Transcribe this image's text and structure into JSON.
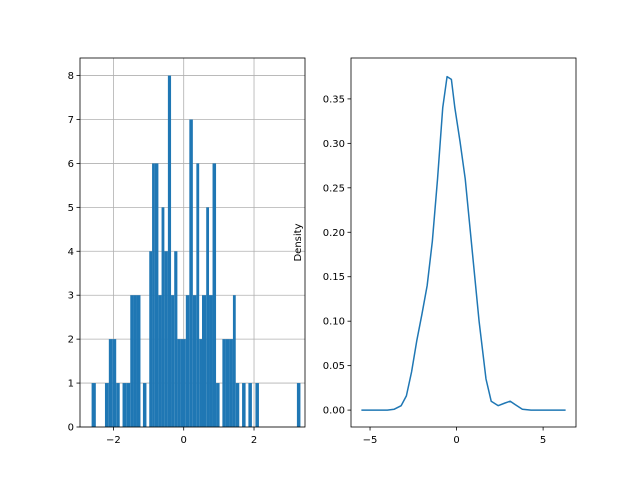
{
  "chart_data": [
    {
      "type": "histogram",
      "grid": true,
      "xlim": [
        -2.95,
        3.45
      ],
      "ylim": [
        0,
        8.4
      ],
      "xticks": [
        -2,
        0,
        2
      ],
      "xtick_labels": [
        "−2",
        "0",
        "2"
      ],
      "yticks": [
        0,
        1,
        2,
        3,
        4,
        5,
        6,
        7,
        8
      ],
      "ytick_labels": [
        "0",
        "1",
        "2",
        "3",
        "4",
        "5",
        "6",
        "7",
        "8"
      ],
      "bar_color": "#1f77b4",
      "bars": [
        {
          "x0": -2.62,
          "x1": -2.5,
          "count": 1
        },
        {
          "x0": -2.24,
          "x1": -2.13,
          "count": 1
        },
        {
          "x0": -2.13,
          "x1": -2.02,
          "count": 2
        },
        {
          "x0": -2.02,
          "x1": -1.92,
          "count": 2
        },
        {
          "x0": -1.92,
          "x1": -1.82,
          "count": 1
        },
        {
          "x0": -1.74,
          "x1": -1.62,
          "count": 1
        },
        {
          "x0": -1.62,
          "x1": -1.52,
          "count": 1
        },
        {
          "x0": -1.52,
          "x1": -1.43,
          "count": 3
        },
        {
          "x0": -1.43,
          "x1": -1.33,
          "count": 3
        },
        {
          "x0": -1.33,
          "x1": -1.23,
          "count": 3
        },
        {
          "x0": -1.16,
          "x1": -1.06,
          "count": 1
        },
        {
          "x0": -0.98,
          "x1": -0.9,
          "count": 4
        },
        {
          "x0": -0.9,
          "x1": -0.82,
          "count": 6
        },
        {
          "x0": -0.82,
          "x1": -0.72,
          "count": 6
        },
        {
          "x0": -0.72,
          "x1": -0.63,
          "count": 3
        },
        {
          "x0": -0.63,
          "x1": -0.55,
          "count": 5
        },
        {
          "x0": -0.55,
          "x1": -0.45,
          "count": 4
        },
        {
          "x0": -0.45,
          "x1": -0.36,
          "count": 8
        },
        {
          "x0": -0.36,
          "x1": -0.27,
          "count": 3
        },
        {
          "x0": -0.27,
          "x1": -0.18,
          "count": 4
        },
        {
          "x0": -0.18,
          "x1": -0.08,
          "count": 2
        },
        {
          "x0": -0.08,
          "x1": 0.06,
          "count": 2
        },
        {
          "x0": 0.06,
          "x1": 0.16,
          "count": 3
        },
        {
          "x0": 0.16,
          "x1": 0.26,
          "count": 7
        },
        {
          "x0": 0.26,
          "x1": 0.36,
          "count": 3
        },
        {
          "x0": 0.36,
          "x1": 0.44,
          "count": 6
        },
        {
          "x0": 0.44,
          "x1": 0.52,
          "count": 2
        },
        {
          "x0": 0.52,
          "x1": 0.64,
          "count": 3
        },
        {
          "x0": 0.64,
          "x1": 0.72,
          "count": 5
        },
        {
          "x0": 0.72,
          "x1": 0.82,
          "count": 3
        },
        {
          "x0": 0.82,
          "x1": 0.92,
          "count": 6
        },
        {
          "x0": 0.92,
          "x1": 1.02,
          "count": 1
        },
        {
          "x0": 1.1,
          "x1": 1.2,
          "count": 2
        },
        {
          "x0": 1.2,
          "x1": 1.3,
          "count": 2
        },
        {
          "x0": 1.3,
          "x1": 1.4,
          "count": 2
        },
        {
          "x0": 1.4,
          "x1": 1.48,
          "count": 3
        },
        {
          "x0": 1.48,
          "x1": 1.58,
          "count": 1
        },
        {
          "x0": 1.66,
          "x1": 1.76,
          "count": 1
        },
        {
          "x0": 1.84,
          "x1": 1.94,
          "count": 1
        },
        {
          "x0": 2.04,
          "x1": 2.14,
          "count": 1
        },
        {
          "x0": 3.22,
          "x1": 3.32,
          "count": 1
        }
      ]
    },
    {
      "type": "line",
      "grid": false,
      "ylabel": "Density",
      "xlim": [
        -6.1,
        6.9
      ],
      "ylim": [
        -0.019,
        0.396
      ],
      "xticks": [
        -5,
        0,
        5
      ],
      "xtick_labels": [
        "−5",
        "0",
        "5"
      ],
      "yticks": [
        0.0,
        0.05,
        0.1,
        0.15,
        0.2,
        0.25,
        0.3,
        0.35
      ],
      "ytick_labels": [
        "0.00",
        "0.05",
        "0.10",
        "0.15",
        "0.20",
        "0.25",
        "0.30",
        "0.35"
      ],
      "line_color": "#1f77b4",
      "x": [
        -5.5,
        -4.0,
        -3.6,
        -3.2,
        -2.9,
        -2.6,
        -2.3,
        -2.0,
        -1.7,
        -1.4,
        -1.1,
        -0.8,
        -0.55,
        -0.3,
        -0.1,
        0.2,
        0.5,
        0.9,
        1.3,
        1.7,
        2.0,
        2.4,
        2.8,
        3.1,
        3.4,
        3.8,
        4.3,
        5.0,
        6.3
      ],
      "y": [
        0.0,
        0.0,
        0.001,
        0.005,
        0.016,
        0.043,
        0.078,
        0.108,
        0.14,
        0.19,
        0.26,
        0.34,
        0.375,
        0.372,
        0.34,
        0.302,
        0.26,
        0.18,
        0.1,
        0.035,
        0.01,
        0.005,
        0.008,
        0.01,
        0.006,
        0.001,
        0.0,
        0.0,
        0.0
      ]
    }
  ]
}
